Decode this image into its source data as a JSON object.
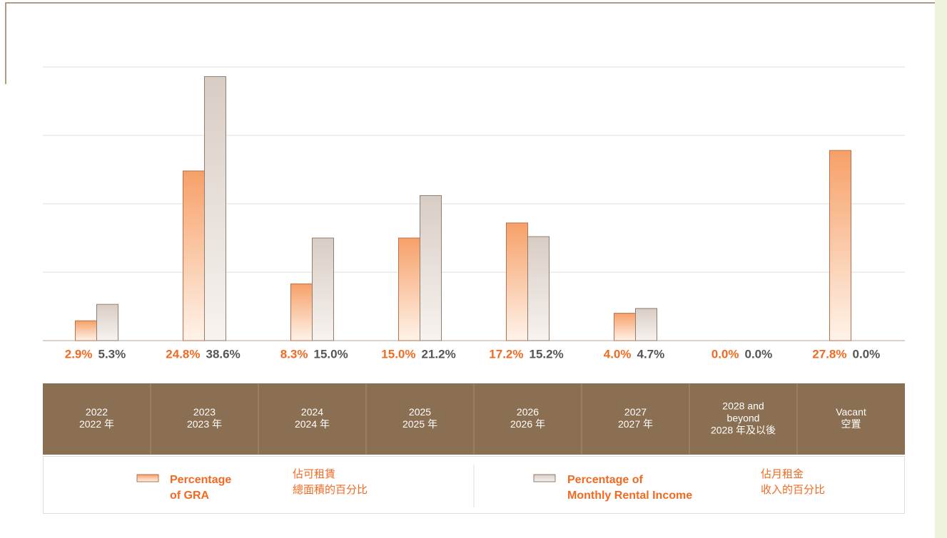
{
  "chart_data": {
    "type": "bar",
    "categories": [
      [
        "2022",
        "2022 年"
      ],
      [
        "2023",
        "2023 年"
      ],
      [
        "2024",
        "2024 年"
      ],
      [
        "2025",
        "2025 年"
      ],
      [
        "2026",
        "2026 年"
      ],
      [
        "2027",
        "2027 年"
      ],
      [
        "2028 and",
        "beyond",
        "2028 年及以後"
      ],
      [
        "Vacant",
        "空置"
      ]
    ],
    "series": [
      {
        "name": [
          "Percentage",
          "of GRA"
        ],
        "name_zh": [
          "佔可租賃",
          "總面積的百分比"
        ],
        "color": "#f7a068",
        "values": [
          2.9,
          24.8,
          8.3,
          15.0,
          17.2,
          4.0,
          0.0,
          27.8
        ],
        "value_labels": [
          "2.9%",
          "24.8%",
          "8.3%",
          "15.0%",
          "17.2%",
          "4.0%",
          "0.0%",
          "27.8%"
        ]
      },
      {
        "name": [
          "Percentage of",
          "Monthly Rental Income"
        ],
        "name_zh": [
          "佔月租金",
          "收入的百分比"
        ],
        "color": "#d8cdc4",
        "values": [
          5.3,
          38.6,
          15.0,
          21.2,
          15.2,
          4.7,
          0.0,
          0.0
        ],
        "value_labels": [
          "5.3%",
          "38.6%",
          "15.0%",
          "21.2%",
          "15.2%",
          "4.7%",
          "0.0%",
          "0.0%"
        ]
      }
    ],
    "ylim": [
      0,
      40
    ],
    "yticks": [
      0,
      10,
      20,
      30,
      40
    ],
    "grid": true
  }
}
